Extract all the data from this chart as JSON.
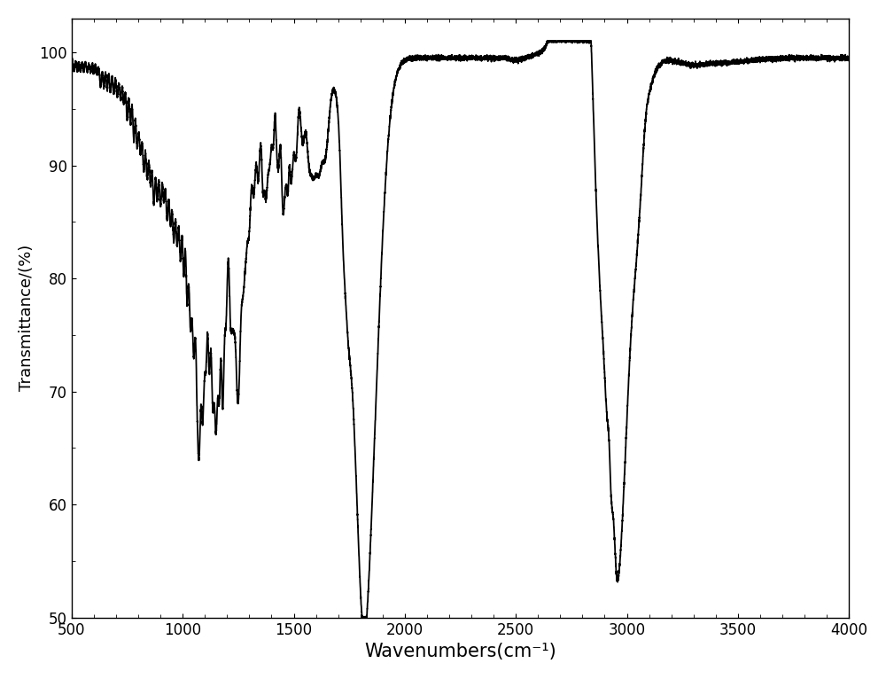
{
  "xlabel": "Wavenumbers(cm⁻¹)",
  "ylabel": "Transmittance/(%)",
  "xlim": [
    4000,
    500
  ],
  "ylim": [
    50,
    103
  ],
  "yticks": [
    50,
    60,
    70,
    80,
    90,
    100
  ],
  "xticks": [
    4000,
    3500,
    3000,
    2500,
    2000,
    1500,
    1000,
    500
  ],
  "line_color": "#000000",
  "line_width": 1.3,
  "background_color": "#ffffff",
  "xlabel_fontsize": 15,
  "ylabel_fontsize": 13,
  "tick_fontsize": 12
}
